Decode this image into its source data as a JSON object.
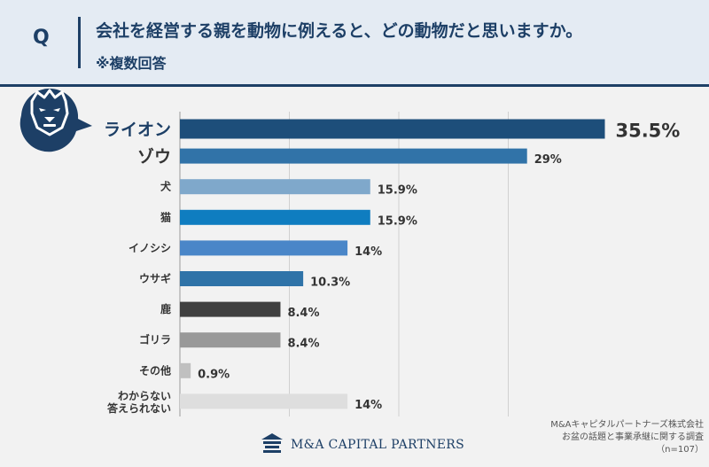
{
  "header": {
    "q_letter": "Q",
    "question": "会社を経営する親を動物に例えると、どの動物だと思いますか。",
    "note": "※複数回答"
  },
  "icons": {
    "badge": "lion-icon",
    "logo": "company-logo-icon"
  },
  "colors": {
    "navy": "#1d3f66",
    "header_bg": "#e4ebf3",
    "page_bg": "#f2f2f2"
  },
  "chart_data": {
    "type": "bar",
    "orientation": "horizontal",
    "categories": [
      "ライオン",
      "ゾウ",
      "犬",
      "猫",
      "イノシシ",
      "ウサギ",
      "鹿",
      "ゴリラ",
      "その他",
      "わからない\n答えられない"
    ],
    "values": [
      35.5,
      29,
      15.9,
      15.9,
      14,
      10.3,
      8.4,
      8.4,
      0.9,
      14
    ],
    "value_labels": [
      "35.5%",
      "29%",
      "15.9%",
      "15.9%",
      "14%",
      "10.3%",
      "8.4%",
      "8.4%",
      "0.9%",
      "14%"
    ],
    "bar_colors": [
      "#1d4e7a",
      "#3173a8",
      "#7fa8cb",
      "#0f7dc0",
      "#4a86c8",
      "#2f73a8",
      "#404040",
      "#999999",
      "#c0c0c0",
      "#dedede"
    ],
    "xlim": [
      0,
      37
    ],
    "grid": true,
    "unit": "%"
  },
  "footer": {
    "source_lines": [
      "M&Aキャピタルパートナーズ株式会社",
      "お盆の話題と事業承継に関する調査",
      "（n=107）"
    ],
    "logo_text": "M&A CAPITAL PARTNERS"
  }
}
